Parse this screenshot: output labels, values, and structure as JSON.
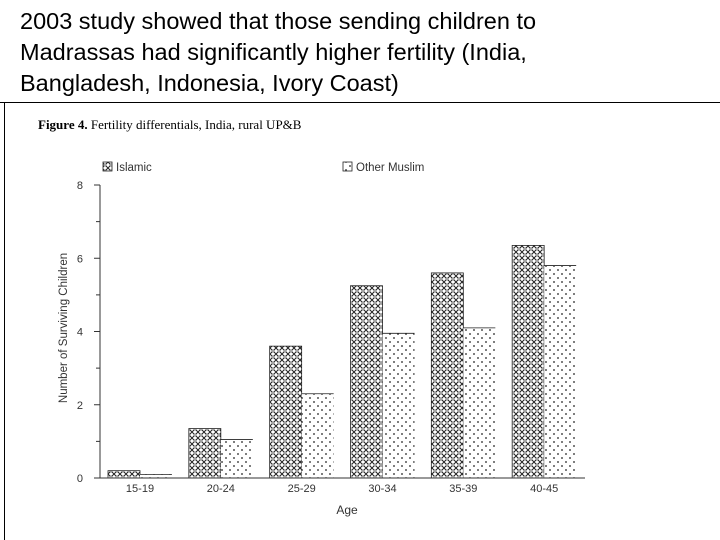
{
  "slide": {
    "title_line1": "2003 study showed that those sending children to",
    "title_line2": "Madrassas had significantly higher fertility (India,",
    "title_line3": "Bangladesh, Indonesia, Ivory Coast)"
  },
  "chart_data": {
    "type": "bar",
    "title": "Figure 4. Fertility differentials, India, rural UP&B",
    "title_bold_part": "Figure 4.",
    "title_rest": " Fertility differentials, India, rural UP&B",
    "xlabel": "Age",
    "ylabel": "Number of Surviving Children",
    "ylim": [
      0,
      8
    ],
    "yticks": [
      "0",
      "2",
      "4",
      "6",
      "8"
    ],
    "categories": [
      "15-19",
      "20-24",
      "25-29",
      "30-34",
      "35-39",
      "40-45"
    ],
    "series": [
      {
        "name": "Islamic",
        "values": [
          0.2,
          1.35,
          3.6,
          5.25,
          5.6,
          6.35
        ],
        "pattern": "crosshatch"
      },
      {
        "name": "Other Muslim",
        "values": [
          0.1,
          1.05,
          2.3,
          3.95,
          4.1,
          5.8
        ],
        "pattern": "dots"
      }
    ],
    "grid": false,
    "legend_position": "top"
  }
}
